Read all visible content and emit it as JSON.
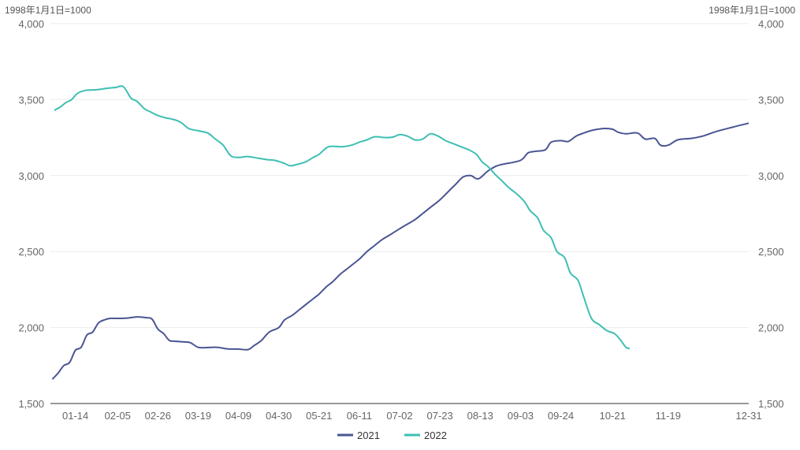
{
  "chart_data": {
    "type": "line",
    "unit_left": "1998年1月1日=1000",
    "unit_right": "1998年1月1日=1000",
    "ylim": [
      1500,
      4000
    ],
    "y_ticks": [
      "1,500",
      "2,000",
      "2,500",
      "3,000",
      "3,500",
      "4,000"
    ],
    "y_tick_values": [
      1500,
      2000,
      2500,
      3000,
      3500,
      4000
    ],
    "x_ticks": [
      "01-14",
      "02-05",
      "02-26",
      "03-19",
      "04-09",
      "04-30",
      "05-21",
      "06-11",
      "07-02",
      "07-23",
      "08-13",
      "09-03",
      "09-24",
      "10-21",
      "11-19",
      "12-31"
    ],
    "x_tick_days": [
      13,
      35,
      56,
      77,
      98,
      119,
      140,
      161,
      182,
      203,
      224,
      245,
      266,
      293,
      322,
      364
    ],
    "x_range_days": [
      0,
      364
    ],
    "colors": {
      "2021": "#4a5593",
      "2022": "#3dbfb3"
    },
    "series": [
      {
        "name": "2021",
        "color": "#4a5593",
        "points": [
          [
            "01-02",
            1660
          ],
          [
            "01-05",
            1700
          ],
          [
            "01-08",
            1750
          ],
          [
            "01-11",
            1770
          ],
          [
            "01-14",
            1850
          ],
          [
            "01-17",
            1870
          ],
          [
            "01-20",
            1950
          ],
          [
            "01-23",
            1970
          ],
          [
            "01-26",
            2030
          ],
          [
            "01-29",
            2050
          ],
          [
            "02-01",
            2060
          ],
          [
            "02-05",
            2060
          ],
          [
            "02-10",
            2062
          ],
          [
            "02-15",
            2070
          ],
          [
            "02-20",
            2065
          ],
          [
            "02-23",
            2055
          ],
          [
            "02-26",
            1990
          ],
          [
            "03-01",
            1960
          ],
          [
            "03-04",
            1915
          ],
          [
            "03-07",
            1910
          ],
          [
            "03-12",
            1905
          ],
          [
            "03-15",
            1900
          ],
          [
            "03-19",
            1870
          ],
          [
            "03-24",
            1868
          ],
          [
            "03-29",
            1870
          ],
          [
            "04-03",
            1860
          ],
          [
            "04-09",
            1858
          ],
          [
            "04-14",
            1855
          ],
          [
            "04-17",
            1880
          ],
          [
            "04-21",
            1915
          ],
          [
            "04-25",
            1970
          ],
          [
            "04-30",
            2000
          ],
          [
            "05-03",
            2050
          ],
          [
            "05-07",
            2080
          ],
          [
            "05-11",
            2120
          ],
          [
            "05-14",
            2150
          ],
          [
            "05-18",
            2190
          ],
          [
            "05-21",
            2220
          ],
          [
            "05-25",
            2270
          ],
          [
            "05-28",
            2300
          ],
          [
            "06-01",
            2350
          ],
          [
            "06-04",
            2380
          ],
          [
            "06-08",
            2420
          ],
          [
            "06-11",
            2450
          ],
          [
            "06-15",
            2500
          ],
          [
            "06-19",
            2540
          ],
          [
            "06-23",
            2580
          ],
          [
            "06-27",
            2610
          ],
          [
            "07-02",
            2650
          ],
          [
            "07-06",
            2680
          ],
          [
            "07-10",
            2710
          ],
          [
            "07-14",
            2750
          ],
          [
            "07-18",
            2790
          ],
          [
            "07-23",
            2840
          ],
          [
            "07-27",
            2890
          ],
          [
            "07-31",
            2940
          ],
          [
            "08-04",
            2990
          ],
          [
            "08-08",
            3000
          ],
          [
            "08-11",
            2980
          ],
          [
            "08-13",
            2985
          ],
          [
            "08-17",
            3030
          ],
          [
            "08-21",
            3060
          ],
          [
            "08-25",
            3075
          ],
          [
            "09-03",
            3100
          ],
          [
            "09-07",
            3150
          ],
          [
            "09-11",
            3160
          ],
          [
            "09-16",
            3170
          ],
          [
            "09-19",
            3220
          ],
          [
            "09-24",
            3230
          ],
          [
            "09-28",
            3225
          ],
          [
            "10-02",
            3260
          ],
          [
            "10-06",
            3280
          ],
          [
            "10-11",
            3300
          ],
          [
            "10-17",
            3310
          ],
          [
            "10-21",
            3305
          ],
          [
            "10-24",
            3285
          ],
          [
            "10-28",
            3275
          ],
          [
            "11-03",
            3280
          ],
          [
            "11-07",
            3240
          ],
          [
            "11-12",
            3245
          ],
          [
            "11-15",
            3200
          ],
          [
            "11-19",
            3200
          ],
          [
            "11-24",
            3235
          ],
          [
            "12-01",
            3245
          ],
          [
            "12-07",
            3260
          ],
          [
            "12-14",
            3290
          ],
          [
            "12-23",
            3320
          ],
          [
            "12-31",
            3345
          ]
        ]
      },
      {
        "name": "2022",
        "color": "#3dbfb3",
        "points": [
          [
            "01-03",
            3430
          ],
          [
            "01-06",
            3450
          ],
          [
            "01-09",
            3480
          ],
          [
            "01-12",
            3500
          ],
          [
            "01-15",
            3540
          ],
          [
            "01-19",
            3560
          ],
          [
            "01-25",
            3565
          ],
          [
            "01-31",
            3575
          ],
          [
            "02-04",
            3580
          ],
          [
            "02-08",
            3585
          ],
          [
            "02-12",
            3510
          ],
          [
            "02-15",
            3490
          ],
          [
            "02-19",
            3440
          ],
          [
            "02-22",
            3420
          ],
          [
            "02-26",
            3395
          ],
          [
            "03-02",
            3380
          ],
          [
            "03-06",
            3370
          ],
          [
            "03-10",
            3350
          ],
          [
            "03-14",
            3310
          ],
          [
            "03-19",
            3295
          ],
          [
            "03-24",
            3280
          ],
          [
            "03-28",
            3240
          ],
          [
            "04-01",
            3200
          ],
          [
            "04-05",
            3130
          ],
          [
            "04-09",
            3120
          ],
          [
            "04-14",
            3125
          ],
          [
            "04-19",
            3115
          ],
          [
            "04-24",
            3105
          ],
          [
            "04-28",
            3100
          ],
          [
            "05-02",
            3085
          ],
          [
            "05-06",
            3065
          ],
          [
            "05-10",
            3075
          ],
          [
            "05-14",
            3090
          ],
          [
            "05-18",
            3120
          ],
          [
            "05-21",
            3140
          ],
          [
            "05-26",
            3190
          ],
          [
            "06-02",
            3190
          ],
          [
            "06-07",
            3200
          ],
          [
            "06-11",
            3220
          ],
          [
            "06-15",
            3235
          ],
          [
            "06-19",
            3255
          ],
          [
            "06-25",
            3250
          ],
          [
            "06-29",
            3255
          ],
          [
            "07-02",
            3270
          ],
          [
            "07-06",
            3260
          ],
          [
            "07-10",
            3235
          ],
          [
            "07-14",
            3240
          ],
          [
            "07-18",
            3275
          ],
          [
            "07-22",
            3260
          ],
          [
            "07-26",
            3230
          ],
          [
            "07-30",
            3210
          ],
          [
            "08-03",
            3190
          ],
          [
            "08-07",
            3170
          ],
          [
            "08-11",
            3140
          ],
          [
            "08-14",
            3090
          ],
          [
            "08-17",
            3060
          ],
          [
            "08-21",
            3005
          ],
          [
            "08-24",
            2970
          ],
          [
            "08-28",
            2920
          ],
          [
            "09-01",
            2880
          ],
          [
            "09-05",
            2830
          ],
          [
            "09-08",
            2770
          ],
          [
            "09-12",
            2720
          ],
          [
            "09-15",
            2640
          ],
          [
            "09-19",
            2590
          ],
          [
            "09-22",
            2500
          ],
          [
            "09-26",
            2460
          ],
          [
            "09-29",
            2360
          ],
          [
            "10-03",
            2310
          ],
          [
            "10-06",
            2200
          ],
          [
            "10-10",
            2060
          ],
          [
            "10-14",
            2020
          ],
          [
            "10-18",
            1980
          ],
          [
            "10-22",
            1960
          ],
          [
            "10-25",
            1920
          ],
          [
            "10-28",
            1870
          ],
          [
            "10-30",
            1862
          ]
        ]
      }
    ],
    "legend": {
      "placement": "bottom-center",
      "entries": [
        "2021",
        "2022"
      ]
    },
    "grid": true
  }
}
